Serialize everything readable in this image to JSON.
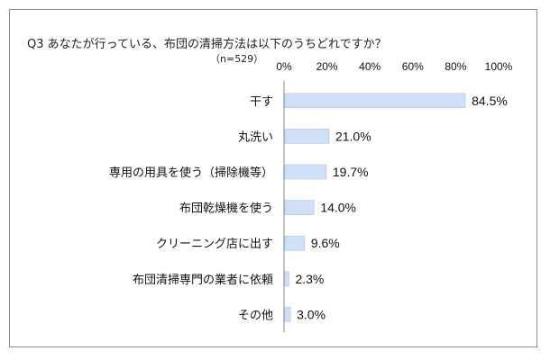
{
  "chart_data": {
    "type": "bar",
    "orientation": "horizontal",
    "title": "Q3 あなたが行っている、布団の清掃方法は以下のうちどれですか？",
    "subtitle": "（n=529）",
    "categories": [
      "干す",
      "丸洗い",
      "専用の用具を使う（掃除機等）",
      "布団乾燥機を使う",
      "クリーニング店に出す",
      "布団清掃専門の業者に依頼",
      "その他"
    ],
    "values": [
      84.5,
      21.0,
      19.7,
      14.0,
      9.6,
      2.3,
      3.0
    ],
    "value_labels": [
      "84.5%",
      "21.0%",
      "19.7%",
      "14.0%",
      "9.6%",
      "2.3%",
      "3.0%"
    ],
    "xlim": [
      0,
      100
    ],
    "x_ticks": [
      "0%",
      "20%",
      "40%",
      "60%",
      "80%",
      "100%"
    ],
    "axis_position": "top",
    "grid": false,
    "colors": {
      "bar_fill": "#cfe0f7",
      "bar_stroke": "#a9c3e8",
      "axis": "#8a8a8a",
      "frame": "#8a8a8a"
    }
  }
}
